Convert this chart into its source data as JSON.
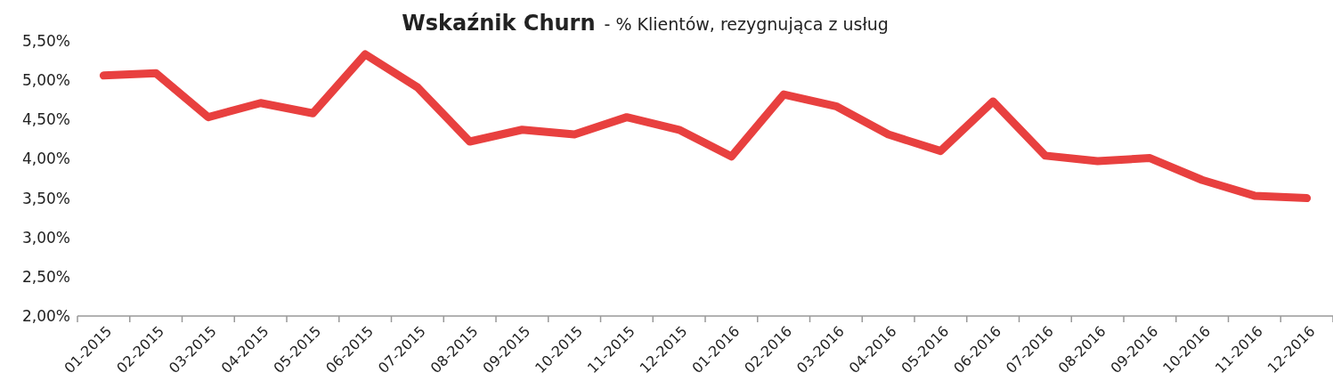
{
  "chart_data": {
    "type": "line",
    "title": "Wskaźnik Churn",
    "subtitle": "- % Klientów, rezygnująca z usług",
    "categories": [
      "01-2015",
      "02-2015",
      "03-2015",
      "04-2015",
      "05-2015",
      "06-2015",
      "07-2015",
      "08-2015",
      "09-2015",
      "10-2015",
      "11-2015",
      "12-2015",
      "01-2016",
      "02-2016",
      "03-2016",
      "04-2016",
      "05-2016",
      "06-2016",
      "07-2016",
      "08-2016",
      "09-2016",
      "10-2016",
      "11-2016",
      "12-2016"
    ],
    "series": [
      {
        "color": "#e8403f",
        "values": [
          5.06,
          5.09,
          4.53,
          4.71,
          4.58,
          5.33,
          4.91,
          4.22,
          4.37,
          4.31,
          4.53,
          4.37,
          4.03,
          4.82,
          4.67,
          4.31,
          4.1,
          4.73,
          4.04,
          3.97,
          4.01,
          3.73,
          3.53,
          3.5
        ]
      }
    ],
    "ylim": [
      2,
      5.5
    ],
    "yticks": [
      {
        "value": 2,
        "label": "2,00%"
      },
      {
        "value": 2.5,
        "label": "2,50%"
      },
      {
        "value": 3,
        "label": "3,00%"
      },
      {
        "value": 3.5,
        "label": "3,50%"
      },
      {
        "value": 4,
        "label": "4,00%"
      },
      {
        "value": 4.5,
        "label": "4,50%"
      },
      {
        "value": 5,
        "label": "5,00%"
      },
      {
        "value": 5.5,
        "label": "5,50%"
      }
    ],
    "grid": false,
    "marker": "none",
    "line_style": "solid"
  }
}
